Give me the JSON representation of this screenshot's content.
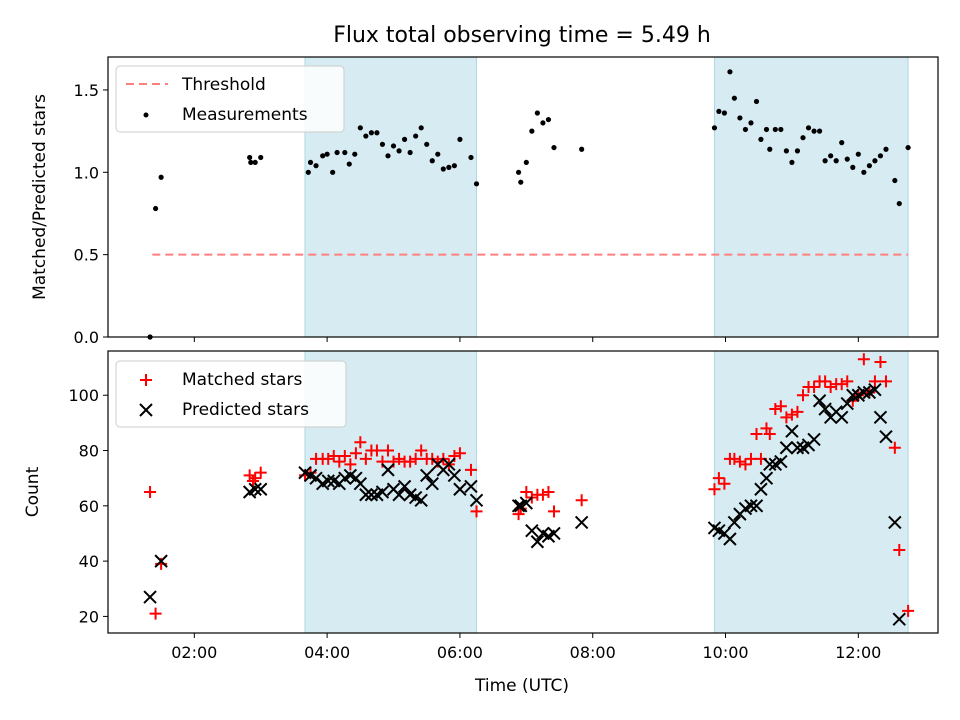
{
  "chart_data": [
    {
      "type": "scatter",
      "title": "Flux total observing time = 5.49 h",
      "xlabel": "",
      "ylabel": "Matched/Predicted stars",
      "xlim": [
        "00:42",
        "13:12"
      ],
      "ylim": [
        0,
        1.7
      ],
      "yticks": [
        0.0,
        0.5,
        1.0,
        1.5
      ],
      "xticks": [
        "02:00",
        "04:00",
        "06:00",
        "08:00",
        "10:00",
        "12:00"
      ],
      "shaded_intervals": [
        [
          "03:40",
          "06:15"
        ],
        [
          "09:50",
          "12:45"
        ]
      ],
      "legend": {
        "position": "top-left",
        "entries": [
          "Threshold",
          "Measurements"
        ]
      },
      "series": [
        {
          "name": "Threshold",
          "style": "dashed-line",
          "color": "#ff7f7f",
          "x": [
            "01:22",
            "12:45"
          ],
          "y": [
            0.5,
            0.5
          ]
        },
        {
          "name": "Measurements",
          "style": "dot",
          "color": "#000000",
          "points": [
            [
              "01:20",
              0.0
            ],
            [
              "01:25",
              0.78
            ],
            [
              "01:30",
              0.97
            ],
            [
              "02:50",
              1.09
            ],
            [
              "02:51",
              1.06
            ],
            [
              "02:55",
              1.06
            ],
            [
              "03:00",
              1.09
            ],
            [
              "03:43",
              1.0
            ],
            [
              "03:45",
              1.06
            ],
            [
              "03:50",
              1.04
            ],
            [
              "03:56",
              1.1
            ],
            [
              "04:00",
              1.11
            ],
            [
              "04:05",
              1.0
            ],
            [
              "04:09",
              1.12
            ],
            [
              "04:16",
              1.12
            ],
            [
              "04:20",
              1.05
            ],
            [
              "04:25",
              1.11
            ],
            [
              "04:30",
              1.27
            ],
            [
              "04:35",
              1.22
            ],
            [
              "04:40",
              1.24
            ],
            [
              "04:45",
              1.24
            ],
            [
              "04:50",
              1.17
            ],
            [
              "04:55",
              1.1
            ],
            [
              "05:00",
              1.16
            ],
            [
              "05:05",
              1.13
            ],
            [
              "05:10",
              1.2
            ],
            [
              "05:15",
              1.12
            ],
            [
              "05:20",
              1.22
            ],
            [
              "05:25",
              1.27
            ],
            [
              "05:30",
              1.17
            ],
            [
              "05:35",
              1.07
            ],
            [
              "05:40",
              1.11
            ],
            [
              "05:45",
              1.02
            ],
            [
              "05:50",
              1.03
            ],
            [
              "05:55",
              1.04
            ],
            [
              "06:00",
              1.2
            ],
            [
              "06:10",
              1.09
            ],
            [
              "06:15",
              0.93
            ],
            [
              "06:53",
              1.0
            ],
            [
              "06:55",
              0.94
            ],
            [
              "07:00",
              1.06
            ],
            [
              "07:05",
              1.25
            ],
            [
              "07:10",
              1.36
            ],
            [
              "07:15",
              1.3
            ],
            [
              "07:20",
              1.32
            ],
            [
              "07:25",
              1.15
            ],
            [
              "07:50",
              1.14
            ],
            [
              "09:50",
              1.27
            ],
            [
              "09:54",
              1.37
            ],
            [
              "09:59",
              1.36
            ],
            [
              "10:04",
              1.61
            ],
            [
              "10:08",
              1.45
            ],
            [
              "10:13",
              1.33
            ],
            [
              "10:18",
              1.26
            ],
            [
              "10:23",
              1.3
            ],
            [
              "10:28",
              1.43
            ],
            [
              "10:32",
              1.2
            ],
            [
              "10:37",
              1.26
            ],
            [
              "10:40",
              1.14
            ],
            [
              "10:45",
              1.26
            ],
            [
              "10:50",
              1.26
            ],
            [
              "10:55",
              1.13
            ],
            [
              "11:00",
              1.06
            ],
            [
              "11:05",
              1.13
            ],
            [
              "11:10",
              1.21
            ],
            [
              "11:15",
              1.27
            ],
            [
              "11:20",
              1.25
            ],
            [
              "11:25",
              1.25
            ],
            [
              "11:30",
              1.07
            ],
            [
              "11:35",
              1.1
            ],
            [
              "11:40",
              1.07
            ],
            [
              "11:45",
              1.18
            ],
            [
              "11:50",
              1.08
            ],
            [
              "11:55",
              1.03
            ],
            [
              "12:00",
              1.11
            ],
            [
              "12:05",
              1.0
            ],
            [
              "12:10",
              1.04
            ],
            [
              "12:15",
              1.07
            ],
            [
              "12:20",
              1.1
            ],
            [
              "12:25",
              1.14
            ],
            [
              "12:33",
              0.95
            ],
            [
              "12:37",
              0.81
            ],
            [
              "12:45",
              1.15
            ]
          ]
        }
      ]
    },
    {
      "type": "scatter",
      "title": "",
      "xlabel": "Time (UTC)",
      "ylabel": "Count",
      "xlim": [
        "00:42",
        "13:12"
      ],
      "ylim": [
        14,
        116
      ],
      "yticks": [
        20,
        40,
        60,
        80,
        100
      ],
      "xticks": [
        "02:00",
        "04:00",
        "06:00",
        "08:00",
        "10:00",
        "12:00"
      ],
      "shaded_intervals": [
        [
          "03:40",
          "06:15"
        ],
        [
          "09:50",
          "12:45"
        ]
      ],
      "legend": {
        "position": "top-left",
        "entries": [
          "Matched stars",
          "Predicted stars"
        ]
      },
      "series": [
        {
          "name": "Matched stars",
          "marker": "plus",
          "color": "#ff0000",
          "points": [
            [
              "01:20",
              65
            ],
            [
              "01:25",
              21
            ],
            [
              "01:30",
              39
            ],
            [
              "02:50",
              71
            ],
            [
              "02:53",
              69
            ],
            [
              "02:55",
              70
            ],
            [
              "03:00",
              72
            ],
            [
              "03:40",
              71
            ],
            [
              "03:45",
              72
            ],
            [
              "03:50",
              77
            ],
            [
              "03:56",
              77
            ],
            [
              "04:01",
              77
            ],
            [
              "04:06",
              78
            ],
            [
              "04:11",
              76
            ],
            [
              "04:16",
              78
            ],
            [
              "04:21",
              75
            ],
            [
              "04:26",
              79
            ],
            [
              "04:30",
              83
            ],
            [
              "04:35",
              77
            ],
            [
              "04:40",
              80
            ],
            [
              "04:45",
              80
            ],
            [
              "04:50",
              76
            ],
            [
              "04:55",
              80
            ],
            [
              "05:00",
              76
            ],
            [
              "05:05",
              77
            ],
            [
              "05:10",
              76
            ],
            [
              "05:15",
              76
            ],
            [
              "05:20",
              77
            ],
            [
              "05:25",
              80
            ],
            [
              "05:30",
              77
            ],
            [
              "05:35",
              77
            ],
            [
              "05:40",
              76
            ],
            [
              "05:45",
              77
            ],
            [
              "05:50",
              75
            ],
            [
              "05:55",
              78
            ],
            [
              "06:00",
              79
            ],
            [
              "06:10",
              73
            ],
            [
              "06:15",
              58
            ],
            [
              "06:53",
              57
            ],
            [
              "06:55",
              59
            ],
            [
              "07:00",
              65
            ],
            [
              "07:05",
              63
            ],
            [
              "07:10",
              64
            ],
            [
              "07:15",
              64
            ],
            [
              "07:20",
              65
            ],
            [
              "07:25",
              58
            ],
            [
              "07:50",
              62
            ],
            [
              "09:50",
              66
            ],
            [
              "09:54",
              70
            ],
            [
              "09:59",
              68
            ],
            [
              "10:04",
              77
            ],
            [
              "10:08",
              77
            ],
            [
              "10:13",
              76
            ],
            [
              "10:18",
              75
            ],
            [
              "10:23",
              77
            ],
            [
              "10:28",
              86
            ],
            [
              "10:32",
              77
            ],
            [
              "10:37",
              88
            ],
            [
              "10:40",
              86
            ],
            [
              "10:45",
              95
            ],
            [
              "10:50",
              96
            ],
            [
              "10:55",
              92
            ],
            [
              "11:00",
              93
            ],
            [
              "11:05",
              94
            ],
            [
              "11:10",
              100
            ],
            [
              "11:15",
              103
            ],
            [
              "11:20",
              103
            ],
            [
              "11:25",
              105
            ],
            [
              "11:30",
              105
            ],
            [
              "11:35",
              103
            ],
            [
              "11:40",
              104
            ],
            [
              "11:45",
              104
            ],
            [
              "11:50",
              105
            ],
            [
              "11:55",
              98
            ],
            [
              "12:00",
              100
            ],
            [
              "12:05",
              113
            ],
            [
              "12:10",
              101
            ],
            [
              "12:15",
              105
            ],
            [
              "12:20",
              112
            ],
            [
              "12:25",
              105
            ],
            [
              "12:33",
              81
            ],
            [
              "12:37",
              44
            ],
            [
              "12:45",
              22
            ]
          ]
        },
        {
          "name": "Predicted stars",
          "marker": "x",
          "color": "#000000",
          "points": [
            [
              "01:20",
              27
            ],
            [
              "01:30",
              40
            ],
            [
              "02:50",
              65
            ],
            [
              "02:55",
              66
            ],
            [
              "03:00",
              66
            ],
            [
              "03:40",
              72
            ],
            [
              "03:45",
              71
            ],
            [
              "03:50",
              70
            ],
            [
              "03:56",
              68
            ],
            [
              "04:01",
              69
            ],
            [
              "04:06",
              69
            ],
            [
              "04:11",
              68
            ],
            [
              "04:16",
              70
            ],
            [
              "04:21",
              71
            ],
            [
              "04:26",
              70
            ],
            [
              "04:30",
              68
            ],
            [
              "04:35",
              64
            ],
            [
              "04:40",
              64
            ],
            [
              "04:45",
              64
            ],
            [
              "04:50",
              65
            ],
            [
              "04:55",
              73
            ],
            [
              "05:00",
              66
            ],
            [
              "05:05",
              64
            ],
            [
              "05:10",
              67
            ],
            [
              "05:15",
              64
            ],
            [
              "05:20",
              63
            ],
            [
              "05:25",
              62
            ],
            [
              "05:30",
              71
            ],
            [
              "05:35",
              68
            ],
            [
              "05:40",
              75
            ],
            [
              "05:45",
              73
            ],
            [
              "05:50",
              75
            ],
            [
              "05:55",
              71
            ],
            [
              "06:00",
              66
            ],
            [
              "06:10",
              67
            ],
            [
              "06:15",
              62
            ],
            [
              "06:53",
              60
            ],
            [
              "06:55",
              60
            ],
            [
              "07:00",
              61
            ],
            [
              "07:05",
              51
            ],
            [
              "07:10",
              47
            ],
            [
              "07:15",
              50
            ],
            [
              "07:20",
              49
            ],
            [
              "07:25",
              50
            ],
            [
              "07:50",
              54
            ],
            [
              "09:50",
              52
            ],
            [
              "09:54",
              51
            ],
            [
              "09:59",
              50
            ],
            [
              "10:04",
              48
            ],
            [
              "10:08",
              54
            ],
            [
              "10:13",
              57
            ],
            [
              "10:18",
              59
            ],
            [
              "10:23",
              60
            ],
            [
              "10:28",
              60
            ],
            [
              "10:32",
              66
            ],
            [
              "10:37",
              70
            ],
            [
              "10:40",
              75
            ],
            [
              "10:45",
              75
            ],
            [
              "10:50",
              76
            ],
            [
              "10:55",
              81
            ],
            [
              "11:00",
              87
            ],
            [
              "11:05",
              81
            ],
            [
              "11:10",
              81
            ],
            [
              "11:15",
              82
            ],
            [
              "11:20",
              84
            ],
            [
              "11:25",
              98
            ],
            [
              "11:30",
              95
            ],
            [
              "11:35",
              92
            ],
            [
              "11:40",
              94
            ],
            [
              "11:45",
              92
            ],
            [
              "11:50",
              97
            ],
            [
              "11:55",
              100
            ],
            [
              "12:00",
              100
            ],
            [
              "12:05",
              101
            ],
            [
              "12:10",
              101
            ],
            [
              "12:15",
              102
            ],
            [
              "12:20",
              92
            ],
            [
              "12:25",
              85
            ],
            [
              "12:33",
              54
            ],
            [
              "12:37",
              19
            ]
          ]
        }
      ]
    }
  ]
}
